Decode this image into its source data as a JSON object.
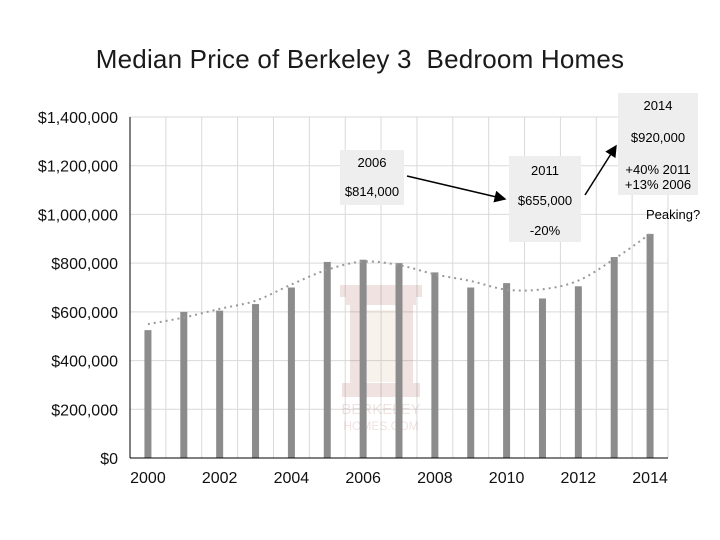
{
  "chart_data": {
    "type": "bar",
    "title": "Median Price of Berkeley 3  Bedroom Homes",
    "xlabel": "",
    "ylabel": "",
    "categories": [
      "2000",
      "2001",
      "2002",
      "2003",
      "2004",
      "2005",
      "2006",
      "2007",
      "2008",
      "2009",
      "2010",
      "2011",
      "2012",
      "2013",
      "2014"
    ],
    "values": [
      525000,
      600000,
      605000,
      632000,
      700000,
      805000,
      814000,
      800000,
      762000,
      700000,
      718000,
      655000,
      705000,
      825000,
      920000
    ],
    "x_tick_labels": [
      "2000",
      "2002",
      "2004",
      "2006",
      "2008",
      "2010",
      "2012",
      "2014"
    ],
    "y_tick_labels": [
      "$0",
      "$200,000",
      "$400,000",
      "$600,000",
      "$800,000",
      "$1,000,000",
      "$1,200,000",
      "$1,400,000"
    ],
    "ylim": [
      0,
      1400000
    ],
    "grid": true,
    "trendline": "dotted polynomial",
    "bar_color": "#8c8c8c",
    "annotations": {
      "box_2006": [
        "2006",
        "$814,000"
      ],
      "box_2011": [
        "2011",
        "$655,000",
        "-20%"
      ],
      "box_2014": [
        "2014",
        "$920,000",
        "+40% 2011",
        "+13% 2006"
      ],
      "peaking": "Peaking?"
    },
    "watermark": [
      "BERKELEY",
      "HOMES.COM"
    ]
  }
}
